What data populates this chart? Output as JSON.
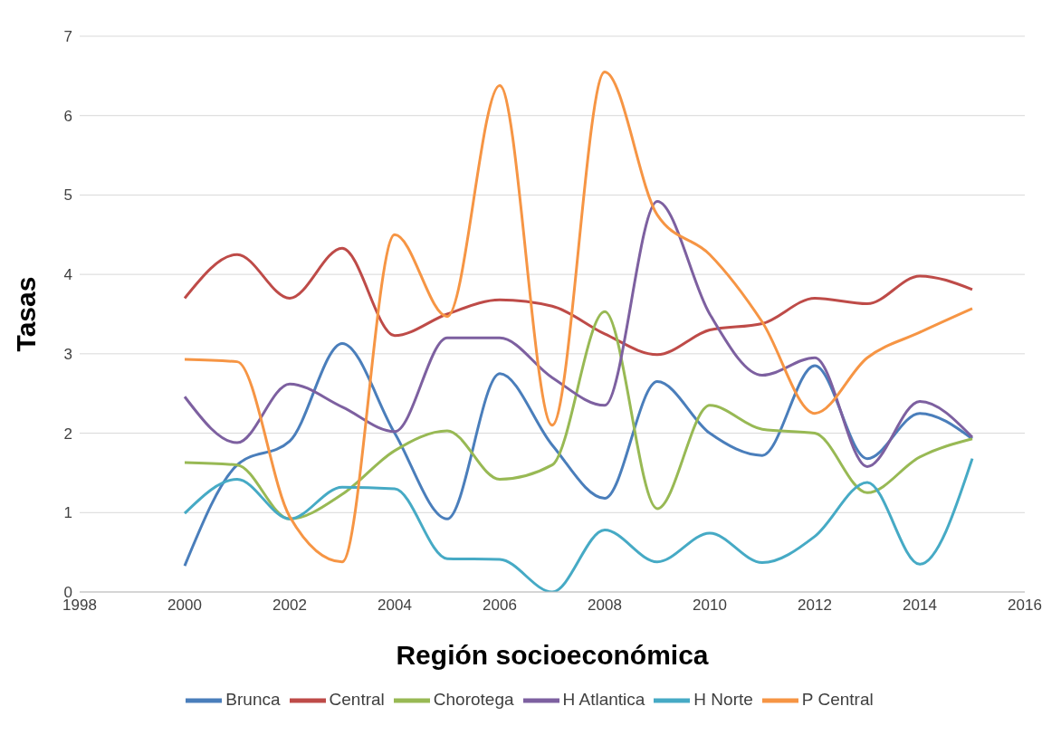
{
  "chart_data": {
    "type": "line",
    "xlabel": "Región socioeconómica",
    "ylabel": "Tasas",
    "x": [
      2000,
      2001,
      2002,
      2003,
      2004,
      2005,
      2006,
      2007,
      2008,
      2009,
      2010,
      2011,
      2012,
      2013,
      2014,
      2015
    ],
    "series": [
      {
        "name": "Brunca",
        "color": "#4a7ebb",
        "values": [
          0.33,
          1.6,
          1.9,
          3.13,
          2.0,
          0.92,
          2.75,
          1.85,
          1.18,
          2.65,
          2.0,
          1.72,
          2.85,
          1.68,
          2.25,
          1.93
        ]
      },
      {
        "name": "Central",
        "color": "#be4b48",
        "values": [
          3.7,
          4.25,
          3.7,
          4.33,
          3.23,
          3.5,
          3.68,
          3.6,
          3.25,
          2.99,
          3.3,
          3.38,
          3.7,
          3.63,
          3.98,
          3.81
        ]
      },
      {
        "name": "Chorotega",
        "color": "#98b954",
        "values": [
          1.63,
          1.6,
          0.92,
          1.23,
          1.78,
          2.03,
          1.42,
          1.6,
          3.53,
          1.05,
          2.35,
          2.05,
          2.0,
          1.25,
          1.7,
          1.93
        ]
      },
      {
        "name": "H Atlantica",
        "color": "#7d60a0",
        "values": [
          2.46,
          1.88,
          2.62,
          2.33,
          2.02,
          3.2,
          3.2,
          2.7,
          2.35,
          4.92,
          3.5,
          2.73,
          2.95,
          1.58,
          2.4,
          1.95
        ]
      },
      {
        "name": "H Norte",
        "color": "#46aac5",
        "values": [
          0.99,
          1.42,
          0.92,
          1.32,
          1.3,
          0.42,
          0.41,
          0.0,
          0.78,
          0.38,
          0.74,
          0.37,
          0.7,
          1.38,
          0.35,
          1.68
        ]
      },
      {
        "name": "P Central",
        "color": "#f69544",
        "values": [
          2.93,
          2.9,
          0.95,
          0.38,
          4.5,
          3.47,
          6.38,
          2.1,
          6.55,
          4.75,
          4.25,
          3.4,
          2.25,
          2.95,
          3.27,
          3.57
        ]
      }
    ],
    "xlim": [
      1998,
      2016
    ],
    "xticks": [
      1998,
      2000,
      2002,
      2004,
      2006,
      2008,
      2010,
      2012,
      2014,
      2016
    ],
    "ylim": [
      0,
      7
    ],
    "yticks": [
      0,
      1,
      2,
      3,
      4,
      5,
      6,
      7
    ],
    "grid": "y",
    "legend": "bottom",
    "marker": "none",
    "line_style": "solid"
  }
}
